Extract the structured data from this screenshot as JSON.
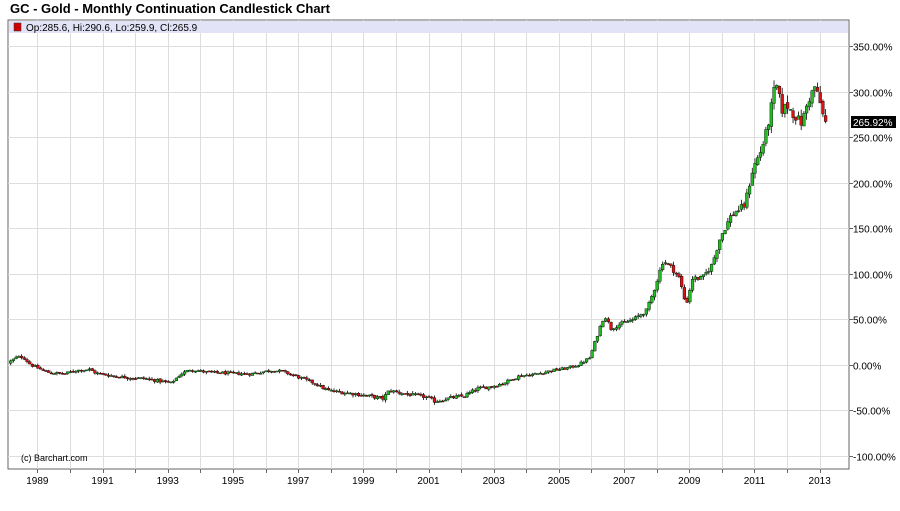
{
  "title": "GC - Gold - Monthly Continuation Candlestick Chart",
  "legend": {
    "text": "Op:285.6, Hi:290.6, Lo:259.9, Cl:265.9",
    "swatch_color": "#cc0000"
  },
  "credit": "(c) Barchart.com",
  "last_value_label": "265.92%",
  "colors": {
    "up": "#22bb22",
    "down": "#dd1111",
    "wick": "#000000",
    "grid": "#dddddd",
    "legend_band": "#e3e3f7",
    "last_label_bg": "#000000"
  },
  "chart_data": {
    "type": "candlestick",
    "title": "GC - Gold - Monthly Continuation Candlestick Chart",
    "y_unit": "%",
    "ylim": [
      -100,
      350
    ],
    "xlim": [
      1988.1,
      2013.9
    ],
    "grid": true,
    "legend_position": "top-left",
    "y_ticks": [
      "350.00%",
      "300.00%",
      "250.00%",
      "200.00%",
      "150.00%",
      "100.00%",
      "50.00%",
      "0.00%",
      "-50.00%",
      "-100.00%"
    ],
    "x_ticks": [
      "1989",
      "1991",
      "1993",
      "1995",
      "1997",
      "1999",
      "2001",
      "2003",
      "2005",
      "2007",
      "2009",
      "2011",
      "2013"
    ],
    "anchors": [
      [
        1988.1,
        2
      ],
      [
        1988.35,
        8
      ],
      [
        1988.55,
        9
      ],
      [
        1988.8,
        0
      ],
      [
        1989.3,
        -8
      ],
      [
        1989.8,
        -10
      ],
      [
        1990.2,
        -6
      ],
      [
        1990.6,
        -5
      ],
      [
        1990.8,
        -9
      ],
      [
        1991.3,
        -12
      ],
      [
        1991.8,
        -14
      ],
      [
        1992.3,
        -15
      ],
      [
        1992.8,
        -18
      ],
      [
        1993.1,
        -20
      ],
      [
        1993.4,
        -10
      ],
      [
        1993.7,
        -5
      ],
      [
        1994.2,
        -8
      ],
      [
        1994.8,
        -9
      ],
      [
        1995.5,
        -10
      ],
      [
        1996.2,
        -6
      ],
      [
        1996.5,
        -7
      ],
      [
        1996.9,
        -12
      ],
      [
        1997.5,
        -20
      ],
      [
        1997.9,
        -28
      ],
      [
        1998.3,
        -30
      ],
      [
        1998.8,
        -32
      ],
      [
        1999.3,
        -35
      ],
      [
        1999.6,
        -37
      ],
      [
        1999.8,
        -28
      ],
      [
        2000.3,
        -32
      ],
      [
        2000.9,
        -35
      ],
      [
        2001.2,
        -40
      ],
      [
        2001.7,
        -36
      ],
      [
        2002.1,
        -34
      ],
      [
        2002.5,
        -26
      ],
      [
        2002.9,
        -24
      ],
      [
        2003.3,
        -20
      ],
      [
        2003.8,
        -12
      ],
      [
        2004.3,
        -10
      ],
      [
        2004.8,
        -6
      ],
      [
        2005.2,
        -4
      ],
      [
        2005.6,
        0
      ],
      [
        2005.95,
        8
      ],
      [
        2006.2,
        35
      ],
      [
        2006.4,
        55
      ],
      [
        2006.6,
        40
      ],
      [
        2006.9,
        45
      ],
      [
        2007.3,
        50
      ],
      [
        2007.7,
        60
      ],
      [
        2007.9,
        80
      ],
      [
        2008.2,
        115
      ],
      [
        2008.5,
        105
      ],
      [
        2008.7,
        95
      ],
      [
        2008.9,
        65
      ],
      [
        2009.1,
        95
      ],
      [
        2009.4,
        95
      ],
      [
        2009.7,
        110
      ],
      [
        2009.95,
        140
      ],
      [
        2010.3,
        165
      ],
      [
        2010.7,
        175
      ],
      [
        2010.95,
        215
      ],
      [
        2011.2,
        235
      ],
      [
        2011.4,
        260
      ],
      [
        2011.65,
        310
      ],
      [
        2011.85,
        280
      ],
      [
        2012.0,
        285
      ],
      [
        2012.2,
        275
      ],
      [
        2012.45,
        265
      ],
      [
        2012.65,
        290
      ],
      [
        2012.85,
        305
      ],
      [
        2013.0,
        290
      ],
      [
        2013.15,
        266
      ]
    ]
  }
}
